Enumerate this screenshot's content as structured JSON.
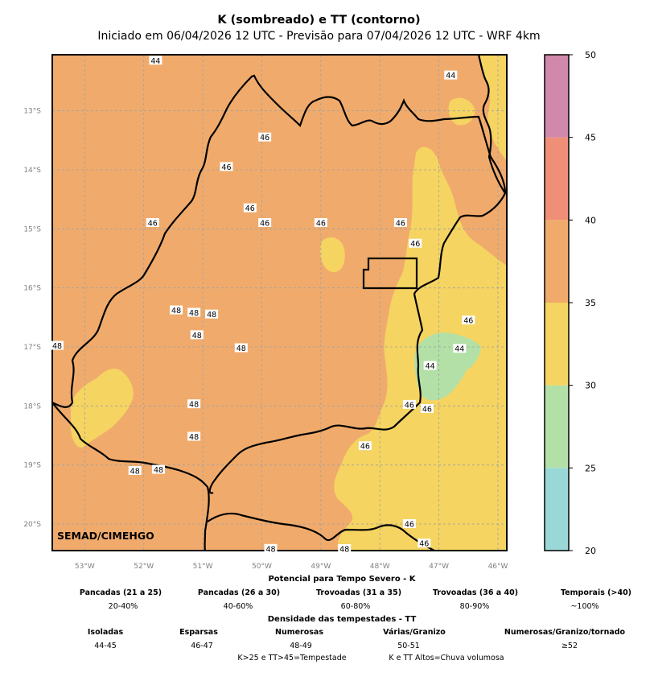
{
  "title": "K (sombreado) e TT (contorno)",
  "subtitle": "Iniciado em 06/04/2026 12 UTC - Previsão para 07/04/2026 12 UTC - WRF 4km",
  "watermark": "SEMAD/CIMEHGO",
  "map": {
    "lon_range": [
      -53.55,
      -45.85
    ],
    "lat_range": [
      -20.45,
      -12.05
    ],
    "lon_ticks": [
      "53°W",
      "52°W",
      "51°W",
      "50°W",
      "49°W",
      "48°W",
      "47°W",
      "46°W"
    ],
    "lat_ticks": [
      "13°S",
      "14°S",
      "15°S",
      "16°S",
      "17°S",
      "18°S",
      "19°S",
      "20°S"
    ],
    "grid": "dashed gray",
    "base_fill_color": "#f0ab6c",
    "tt_contour_labels": [
      {
        "text": "44",
        "lon": -51.8,
        "lat": -12.15
      },
      {
        "text": "44",
        "lon": -46.8,
        "lat": -12.4
      },
      {
        "text": "46",
        "lon": -49.95,
        "lat": -13.45
      },
      {
        "text": "46",
        "lon": -50.6,
        "lat": -13.95
      },
      {
        "text": "46",
        "lon": -50.2,
        "lat": -14.65
      },
      {
        "text": "46",
        "lon": -49.95,
        "lat": -14.9
      },
      {
        "text": "46",
        "lon": -51.85,
        "lat": -14.9
      },
      {
        "text": "46",
        "lon": -49.0,
        "lat": -14.9
      },
      {
        "text": "46",
        "lon": -47.65,
        "lat": -14.9
      },
      {
        "text": "46",
        "lon": -47.4,
        "lat": -15.25
      },
      {
        "text": "48",
        "lon": -51.45,
        "lat": -16.38
      },
      {
        "text": "48",
        "lon": -51.15,
        "lat": -16.42
      },
      {
        "text": "48",
        "lon": -50.85,
        "lat": -16.45
      },
      {
        "text": "48",
        "lon": -51.1,
        "lat": -16.8
      },
      {
        "text": "48",
        "lon": -50.35,
        "lat": -17.02
      },
      {
        "text": "48",
        "lon": -53.55,
        "lat": -16.98
      },
      {
        "text": "46",
        "lon": -46.5,
        "lat": -16.55
      },
      {
        "text": "44",
        "lon": -46.65,
        "lat": -17.03
      },
      {
        "text": "44",
        "lon": -47.15,
        "lat": -17.32
      },
      {
        "text": "46",
        "lon": -47.5,
        "lat": -17.98
      },
      {
        "text": "46",
        "lon": -47.2,
        "lat": -18.05
      },
      {
        "text": "48",
        "lon": -51.15,
        "lat": -17.97
      },
      {
        "text": "48",
        "lon": -51.15,
        "lat": -18.52
      },
      {
        "text": "46",
        "lon": -48.25,
        "lat": -18.68
      },
      {
        "text": "48",
        "lon": -52.15,
        "lat": -19.1
      },
      {
        "text": "48",
        "lon": -51.75,
        "lat": -19.08
      },
      {
        "text": "46",
        "lon": -47.5,
        "lat": -20.0
      },
      {
        "text": "46",
        "lon": -47.25,
        "lat": -20.33
      },
      {
        "text": "48",
        "lon": -49.85,
        "lat": -20.42
      },
      {
        "text": "48",
        "lon": -48.6,
        "lat": -20.45
      }
    ]
  },
  "colorbar": {
    "min": 20,
    "max": 50,
    "ticks": [
      "20",
      "25",
      "30",
      "35",
      "40",
      "45",
      "50"
    ],
    "bands": [
      {
        "from": 20,
        "to": 25,
        "color": "#9ad8d8"
      },
      {
        "from": 25,
        "to": 30,
        "color": "#b3e0a6"
      },
      {
        "from": 30,
        "to": 35,
        "color": "#f5d462"
      },
      {
        "from": 35,
        "to": 40,
        "color": "#f0ab6c"
      },
      {
        "from": 40,
        "to": 45,
        "color": "#ef8f77"
      },
      {
        "from": 45,
        "to": 50,
        "color": "#d088ab"
      }
    ]
  },
  "legend": {
    "k_title": "Potencial para Tempo Severo - K",
    "k_items": [
      {
        "label": "Pancadas (21 a 25)",
        "value": "20-40%"
      },
      {
        "label": "Pancadas (26 a 30)",
        "value": "40-60%"
      },
      {
        "label": "Trovoadas (31 a 35)",
        "value": "60-80%"
      },
      {
        "label": "Trovoadas (36 a 40)",
        "value": "80-90%"
      },
      {
        "label": "Temporais (>40)",
        "value": "~100%"
      }
    ],
    "tt_title": "Densidade das tempestades - TT",
    "tt_items": [
      {
        "label": "Isoladas",
        "value": "44-45"
      },
      {
        "label": "Esparsas",
        "value": "46-47"
      },
      {
        "label": "Numerosas",
        "value": "48-49"
      },
      {
        "label": "Várias/Granizo",
        "value": "50-51"
      },
      {
        "label": "Numerosas/Granizo/tornado",
        "value": "≥52"
      }
    ],
    "note_1": "K>25 e TT>45=Tempestade",
    "note_2": "K e TT Altos=Chuva volumosa"
  }
}
